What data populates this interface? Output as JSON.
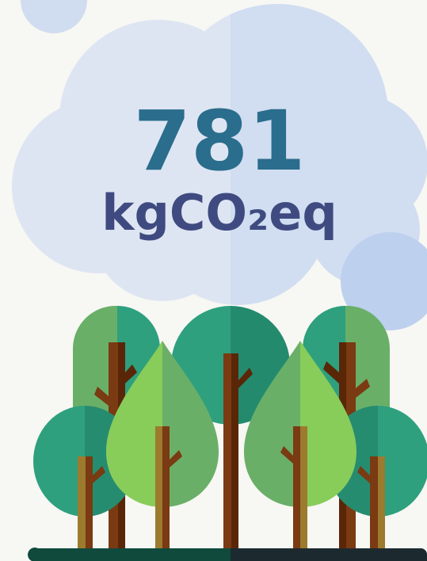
{
  "figure": {
    "value": 781,
    "unit": "kgCO₂eq"
  }
}
